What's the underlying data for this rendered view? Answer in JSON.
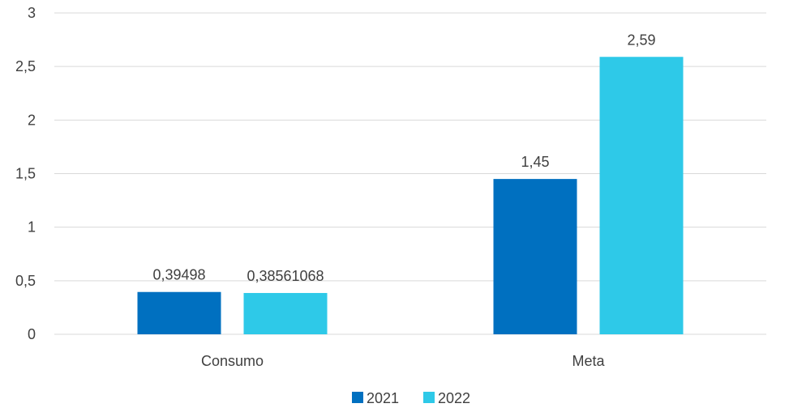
{
  "chart_data": {
    "type": "bar",
    "categories": [
      "Consumo",
      "Meta"
    ],
    "series": [
      {
        "name": "2021",
        "color": "#0070c0",
        "values": [
          0.39498,
          1.45
        ],
        "labels": [
          "0,39498",
          "1,45"
        ]
      },
      {
        "name": "2022",
        "color": "#2ec9e8",
        "values": [
          0.38561068,
          2.59
        ],
        "labels": [
          "0,38561068",
          "2,59"
        ]
      }
    ],
    "ylim": [
      0,
      3
    ],
    "yticks": [
      0,
      0.5,
      1,
      1.5,
      2,
      2.5,
      3
    ],
    "ytick_labels": [
      "0",
      "0,5",
      "1",
      "1,5",
      "2",
      "2,5",
      "3"
    ],
    "grid": true,
    "legend": "bottom"
  }
}
